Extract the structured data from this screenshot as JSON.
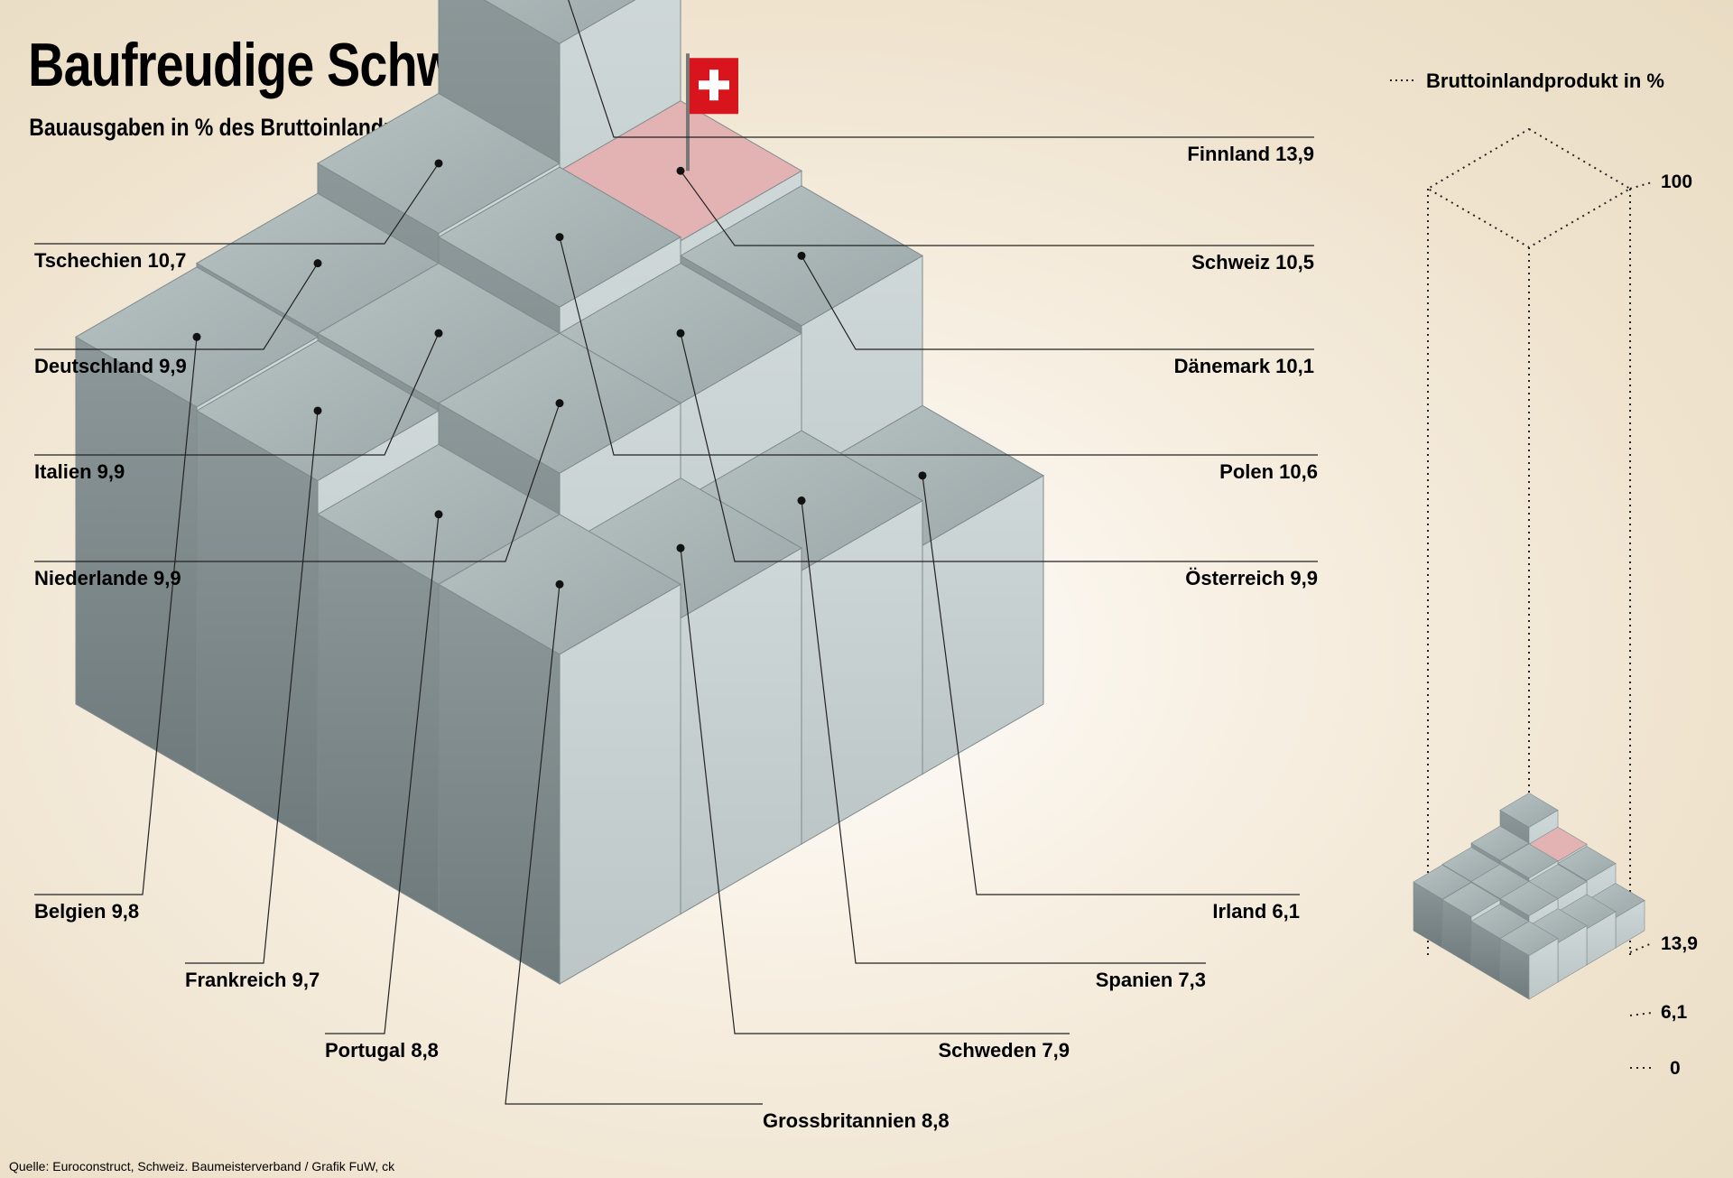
{
  "title": "Baufreudige Schweiz",
  "subtitle": "Bauausgaben in % des Bruttoinlandprodukts",
  "source": "Quelle: Euroconstruct, Schweiz. Baumeisterverband   / Grafik FuW, ck",
  "legend_label": "Bruttoinlandprodukt in %",
  "colors": {
    "highlight": "#e3b3b3",
    "flag": "#d8151c"
  },
  "chart_data": {
    "type": "bar",
    "title": "Baufreudige Schweiz",
    "subtitle": "Bauausgaben in % des Bruttoinlandprodukts",
    "unit": "%",
    "series": [
      {
        "country": "Finnland",
        "value": 13.9,
        "label": "Finnland 13,9"
      },
      {
        "country": "Schweiz",
        "value": 10.5,
        "label": "Schweiz 10,5",
        "highlight": true
      },
      {
        "country": "Dänemark",
        "value": 10.1,
        "label": "Dänemark 10,1"
      },
      {
        "country": "Polen",
        "value": 10.6,
        "label": "Polen 10,6"
      },
      {
        "country": "Österreich",
        "value": 9.9,
        "label": "Österreich 9,9"
      },
      {
        "country": "Irland",
        "value": 6.1,
        "label": "Irland 6,1"
      },
      {
        "country": "Spanien",
        "value": 7.3,
        "label": "Spanien 7,3"
      },
      {
        "country": "Schweden",
        "value": 7.9,
        "label": "Schweden 7,9"
      },
      {
        "country": "Grossbritannien",
        "value": 8.8,
        "label": "Grossbritannien 8,8"
      },
      {
        "country": "Portugal",
        "value": 8.8,
        "label": "Portugal 8,8"
      },
      {
        "country": "Frankreich",
        "value": 9.7,
        "label": "Frankreich 9,7"
      },
      {
        "country": "Belgien",
        "value": 9.8,
        "label": "Belgien 9,8"
      },
      {
        "country": "Niederlande",
        "value": 9.9,
        "label": "Niederlande 9,9"
      },
      {
        "country": "Italien",
        "value": 9.9,
        "label": "Italien 9,9"
      },
      {
        "country": "Deutschland",
        "value": 9.9,
        "label": "Deutschland 9,9"
      },
      {
        "country": "Tschechien",
        "value": 10.7,
        "label": "Tschechien 10,7"
      }
    ],
    "scale": {
      "ticks": [
        "100",
        "13,9",
        "6,1",
        "0"
      ],
      "max": 100,
      "min": 0
    }
  }
}
